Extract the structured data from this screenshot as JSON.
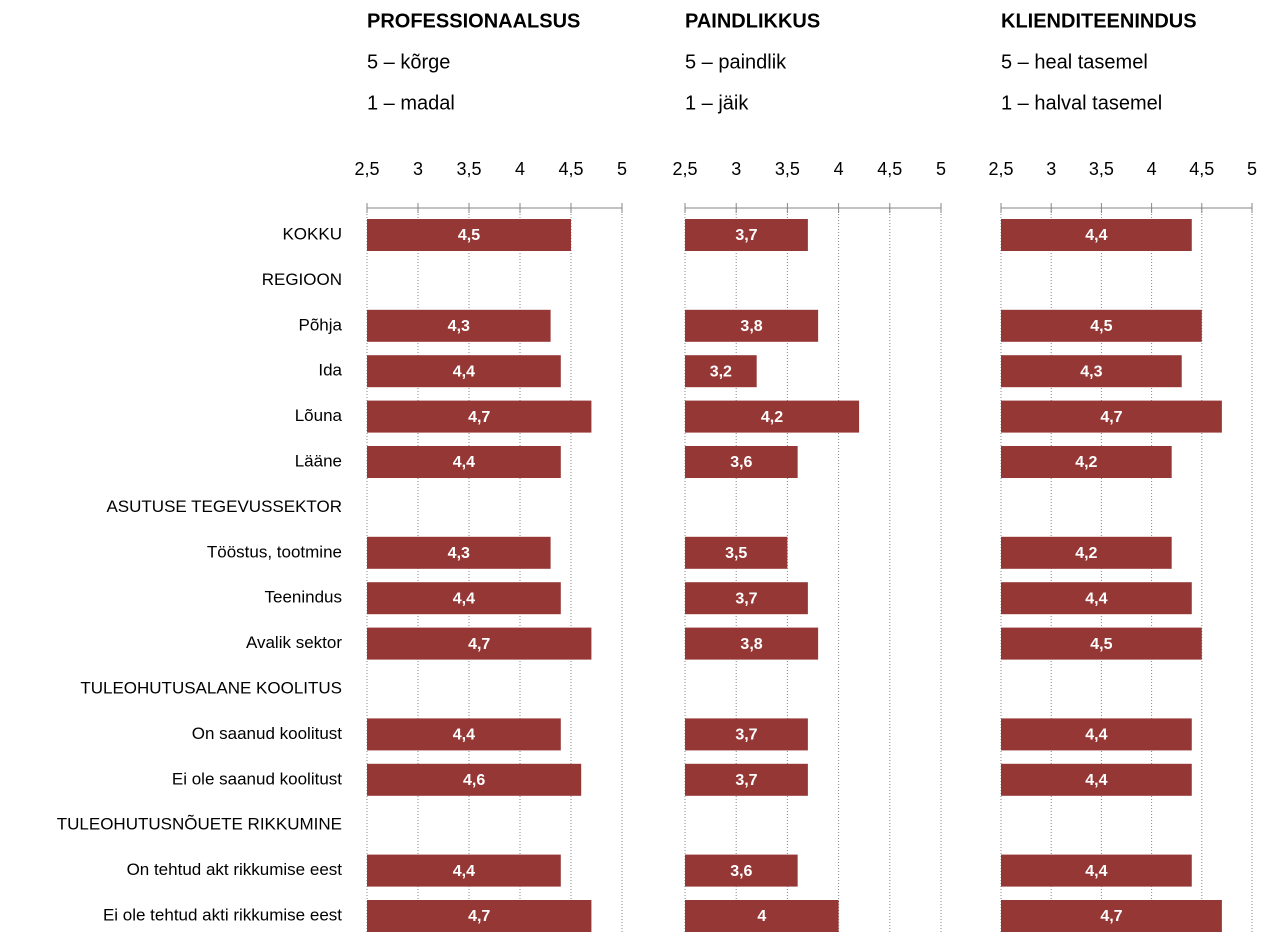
{
  "chart_data": [
    {
      "type": "bar",
      "orientation": "horizontal",
      "title": "PROFESSIONAALSUS",
      "subtitle": [
        "5 – kõrge",
        "1 – madal"
      ],
      "categories": [
        "KOKKU",
        "REGIOON",
        "Põhja",
        "Ida",
        "Lõuna",
        "Lääne",
        "ASUTUSE TEGEVUSSEKTOR",
        "Tööstus, tootmine",
        "Teenindus",
        "Avalik sektor",
        "TULEOHUTUSALANE KOOLITUS",
        "On saanud koolitust",
        "Ei ole saanud koolitust",
        "TULEOHUTUSNÕUETE RIKKUMINE",
        "On tehtud akt rikkumise eest",
        "Ei ole tehtud akti rikkumise eest"
      ],
      "values": [
        4.5,
        null,
        4.3,
        4.4,
        4.7,
        4.4,
        null,
        4.3,
        4.4,
        4.7,
        null,
        4.4,
        4.6,
        null,
        4.4,
        4.7
      ],
      "value_labels": [
        "4,5",
        null,
        "4,3",
        "4,4",
        "4,7",
        "4,4",
        null,
        "4,3",
        "4,4",
        "4,7",
        null,
        "4,4",
        "4,6",
        null,
        "4,4",
        "4,7"
      ],
      "color": "#953735",
      "xlim": [
        2.5,
        5
      ],
      "xticks": [
        {
          "value": 2.5,
          "label": "2,5"
        },
        3,
        {
          "value": 3.5,
          "label": "3,5"
        },
        4,
        {
          "value": 4.5,
          "label": "4,5"
        },
        5
      ],
      "grid": true
    },
    {
      "type": "bar",
      "orientation": "horizontal",
      "title": "PAINDLIKKUS",
      "subtitle": [
        "5 – paindlik",
        "1 – jäik"
      ],
      "values": [
        3.7,
        null,
        3.8,
        3.2,
        4.2,
        3.6,
        null,
        3.5,
        3.7,
        3.8,
        null,
        3.7,
        3.7,
        null,
        3.6,
        4
      ],
      "value_labels": [
        "3,7",
        null,
        "3,8",
        "3,2",
        "4,2",
        "3,6",
        null,
        "3,5",
        "3,7",
        "3,8",
        null,
        "3,7",
        "3,7",
        null,
        "3,6",
        "4"
      ],
      "color": "#953735",
      "xlim": [
        2.5,
        5
      ],
      "xticks": [
        {
          "value": 2.5,
          "label": "2,5"
        },
        3,
        {
          "value": 3.5,
          "label": "3,5"
        },
        4,
        {
          "value": 4.5,
          "label": "4,5"
        },
        5
      ],
      "grid": true
    },
    {
      "type": "bar",
      "orientation": "horizontal",
      "title": "KLIENDITEENINDUS",
      "subtitle": [
        "5 – heal tasemel",
        "1 – halval tasemel"
      ],
      "values": [
        4.4,
        null,
        4.5,
        4.3,
        4.7,
        4.2,
        null,
        4.2,
        4.4,
        4.5,
        null,
        4.4,
        4.4,
        null,
        4.4,
        4.7
      ],
      "value_labels": [
        "4,4",
        null,
        "4,5",
        "4,3",
        "4,7",
        "4,2",
        null,
        "4,2",
        "4,4",
        "4,5",
        null,
        "4,4",
        "4,4",
        null,
        "4,4",
        "4,7"
      ],
      "color": "#953735",
      "xlim": [
        2.5,
        5
      ],
      "xticks": [
        {
          "value": 2.5,
          "label": "2,5"
        },
        3,
        {
          "value": 3.5,
          "label": "3,5"
        },
        4,
        {
          "value": 4.5,
          "label": "4,5"
        },
        5
      ],
      "grid": true
    }
  ]
}
